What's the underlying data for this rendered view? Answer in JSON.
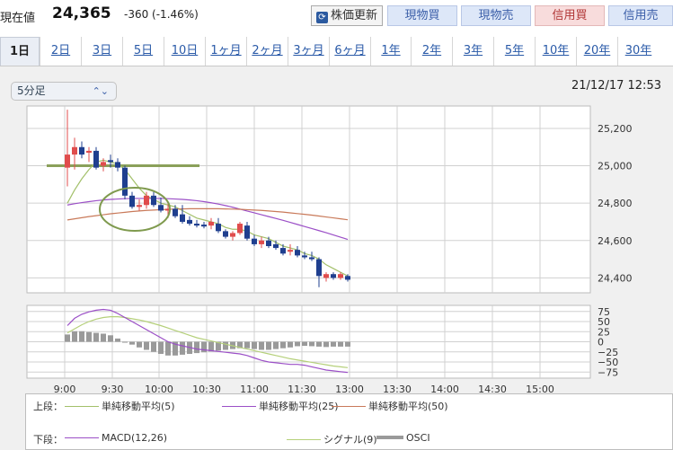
{
  "header": {
    "price_label": "現在値",
    "price": "24,365",
    "change": "-360 (-1.46%)",
    "buttons": {
      "update": "株価更新",
      "genbutsu_buy": "現物買",
      "genbutsu_sell": "現物売",
      "shinyo_buy": "信用買",
      "shinyo_sell": "信用売"
    }
  },
  "tabs": [
    "1日",
    "2日",
    "3日",
    "5日",
    "10日",
    "1ヶ月",
    "2ヶ月",
    "3ヶ月",
    "6ヶ月",
    "1年",
    "2年",
    "3年",
    "5年",
    "10年",
    "20年",
    "30年"
  ],
  "active_tab": "1日",
  "interval_select": "5分足",
  "timestamp": "21/12/17 12:53",
  "colors": {
    "up": "#e04c4c",
    "down": "#1f3f8f",
    "sma5": "#a3c06a",
    "sma25": "#9b4fc7",
    "sma50": "#c97a5a",
    "macd": "#9b4fc7",
    "signal": "#b5d07a",
    "osci": "#9a9a9a",
    "grid": "#d0d0d0"
  },
  "chart_data": [
    {
      "type": "candlestick",
      "ylim": [
        24320,
        25320
      ],
      "yticks": [
        "25,200",
        "25,000",
        "24,800",
        "24,600",
        "24,400"
      ],
      "ytick_values": [
        25200,
        25000,
        24800,
        24600,
        24400
      ],
      "xticks": [
        "9:00",
        "9:30",
        "10:00",
        "10:30",
        "11:00",
        "11:30",
        "13:00",
        "13:30",
        "14:00",
        "14:30",
        "15:00"
      ],
      "candles": [
        [
          24990,
          25300,
          24890,
          25060
        ],
        [
          25060,
          25150,
          24980,
          25100
        ],
        [
          25100,
          25130,
          25040,
          25060
        ],
        [
          25070,
          25100,
          25020,
          25080
        ],
        [
          25080,
          25100,
          24980,
          24990
        ],
        [
          25000,
          25040,
          24970,
          25020
        ],
        [
          25030,
          25060,
          24990,
          25020
        ],
        [
          25020,
          25040,
          24970,
          24990
        ],
        [
          24990,
          25000,
          24820,
          24840
        ],
        [
          24840,
          24860,
          24770,
          24780
        ],
        [
          24780,
          24820,
          24760,
          24790
        ],
        [
          24790,
          24860,
          24770,
          24840
        ],
        [
          24840,
          24860,
          24780,
          24790
        ],
        [
          24790,
          24830,
          24750,
          24760
        ],
        [
          24760,
          24800,
          24720,
          24770
        ],
        [
          24770,
          24790,
          24720,
          24730
        ],
        [
          24740,
          24790,
          24690,
          24700
        ],
        [
          24710,
          24730,
          24680,
          24690
        ],
        [
          24690,
          24710,
          24670,
          24680
        ],
        [
          24685,
          24700,
          24665,
          24675
        ],
        [
          24680,
          24720,
          24660,
          24700
        ],
        [
          24690,
          24720,
          24640,
          24650
        ],
        [
          24650,
          24660,
          24610,
          24620
        ],
        [
          24620,
          24650,
          24600,
          24640
        ],
        [
          24640,
          24700,
          24630,
          24690
        ],
        [
          24680,
          24700,
          24600,
          24610
        ],
        [
          24610,
          24630,
          24570,
          24580
        ],
        [
          24580,
          24620,
          24560,
          24600
        ],
        [
          24600,
          24620,
          24560,
          24570
        ],
        [
          24580,
          24600,
          24550,
          24560
        ],
        [
          24560,
          24580,
          24520,
          24530
        ],
        [
          24540,
          24580,
          24520,
          24550
        ],
        [
          24550,
          24570,
          24510,
          24520
        ],
        [
          24520,
          24540,
          24500,
          24510
        ],
        [
          24510,
          24540,
          24490,
          24500
        ],
        [
          24500,
          24510,
          24350,
          24410
        ],
        [
          24400,
          24430,
          24380,
          24420
        ],
        [
          24420,
          24430,
          24390,
          24400
        ],
        [
          24400,
          24430,
          24390,
          24420
        ],
        [
          24410,
          24420,
          24380,
          24390
        ]
      ],
      "overlays": [
        {
          "name": "単純移動平均(5)",
          "values": [
            24800,
            24870,
            24930,
            24980,
            25020,
            25030,
            25020,
            25010,
            24980,
            24930,
            24880,
            24840,
            24820,
            24800,
            24790,
            24780,
            24760,
            24740,
            24720,
            24710,
            24700,
            24690,
            24670,
            24660,
            24660,
            24650,
            24630,
            24620,
            24610,
            24590,
            24570,
            24560,
            24550,
            24530,
            24520,
            24500,
            24470,
            24450,
            24430,
            24410
          ]
        },
        {
          "name": "単純移動平均(25)",
          "values": [
            24790,
            24797,
            24803,
            24808,
            24813,
            24817,
            24820,
            24822,
            24824,
            24825,
            24825,
            24825,
            24825,
            24825,
            24824,
            24822,
            24820,
            24817,
            24813,
            24808,
            24802,
            24795,
            24787,
            24778,
            24768,
            24758,
            24748,
            24738,
            24728,
            24718,
            24708,
            24697,
            24686,
            24675,
            24664,
            24653,
            24642,
            24630,
            24618,
            24606
          ]
        },
        {
          "name": "単純移動平均(50)",
          "values": [
            24710,
            24716,
            24722,
            24728,
            24733,
            24738,
            24743,
            24747,
            24751,
            24755,
            24758,
            24761,
            24763,
            24765,
            24767,
            24768,
            24769,
            24770,
            24770,
            24770,
            24770,
            24770,
            24769,
            24768,
            24767,
            24765,
            24763,
            24761,
            24758,
            24755,
            24752,
            24748,
            24744,
            24740,
            24736,
            24731,
            24726,
            24721,
            24716,
            24711
          ]
        }
      ],
      "reference_line": 25000,
      "annotation": "ellipse around 9:30–10:00 candles"
    },
    {
      "type": "macd",
      "ylim": [
        -90,
        90
      ],
      "yticks": [
        "75",
        "50",
        "25",
        "0",
        "−25",
        "−50",
        "−75"
      ],
      "ytick_values": [
        75,
        50,
        25,
        0,
        -25,
        -50,
        -75
      ],
      "macd": [
        40,
        58,
        68,
        74,
        78,
        80,
        78,
        70,
        60,
        50,
        40,
        30,
        20,
        10,
        0,
        -6,
        -10,
        -14,
        -18,
        -20,
        -22,
        -24,
        -26,
        -28,
        -30,
        -34,
        -40,
        -46,
        -50,
        -52,
        -54,
        -56,
        -56,
        -58,
        -62,
        -66,
        -70,
        -72,
        -74,
        -76
      ],
      "signal": [
        22,
        32,
        42,
        50,
        56,
        60,
        62,
        62,
        60,
        57,
        54,
        50,
        45,
        40,
        34,
        28,
        22,
        16,
        10,
        6,
        2,
        -2,
        -6,
        -10,
        -14,
        -18,
        -22,
        -26,
        -30,
        -34,
        -38,
        -42,
        -45,
        -48,
        -51,
        -54,
        -57,
        -60,
        -62,
        -64
      ],
      "osci": [
        18,
        26,
        26,
        24,
        22,
        20,
        16,
        8,
        0,
        -7,
        -14,
        -20,
        -25,
        -30,
        -34,
        -34,
        -32,
        -30,
        -28,
        -26,
        -24,
        -22,
        -20,
        -18,
        -16,
        -16,
        -18,
        -20,
        -20,
        -18,
        -16,
        -14,
        -11,
        -10,
        -11,
        -12,
        -13,
        -12,
        -12,
        -12
      ]
    }
  ],
  "legend": {
    "upper_label": "上段：",
    "lower_label": "下段：",
    "items_upper": [
      "単純移動平均(5)",
      "単純移動平均(25)",
      "単純移動平均(50)"
    ],
    "items_lower": [
      "MACD(12,26)",
      "シグナル(9)",
      "OSCI"
    ]
  }
}
